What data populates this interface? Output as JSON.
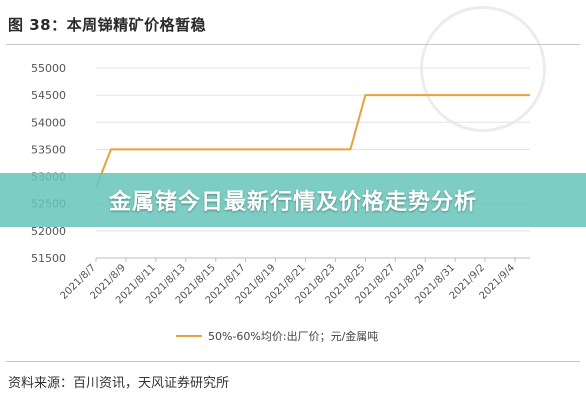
{
  "header": {
    "figure_title": "图 38：本周锑精矿价格暂稳"
  },
  "banner": {
    "text": "金属锗今日最新行情及价格走势分析"
  },
  "footer": {
    "source": "资料来源：百川资讯，天风证券研究所"
  },
  "chart_data": {
    "type": "line",
    "title": "图 38：本周锑精矿价格暂稳",
    "xlabel": "",
    "ylabel": "",
    "ylim": [
      51500,
      55000
    ],
    "yticks": [
      51500,
      52000,
      52500,
      53000,
      53500,
      54000,
      54500,
      55000
    ],
    "xtick_labels": [
      "2021/8/7",
      "2021/8/9",
      "2021/8/11",
      "2021/8/13",
      "2021/8/15",
      "2021/8/17",
      "2021/8/19",
      "2021/8/21",
      "2021/8/23",
      "2021/8/25",
      "2021/8/27",
      "2021/8/29",
      "2021/8/31",
      "2021/9/2",
      "2021/9/4"
    ],
    "x_range": [
      "2021/8/7",
      "2021/9/5"
    ],
    "grid": true,
    "legend_position": "bottom",
    "series": [
      {
        "name": "50%-60%均价:出厂价；元/金属吨",
        "color": "#e6a23c",
        "points": [
          {
            "x": "2021/8/7",
            "y": 52800
          },
          {
            "x": "2021/8/8",
            "y": 53500
          },
          {
            "x": "2021/8/24",
            "y": 53500
          },
          {
            "x": "2021/8/25",
            "y": 54500
          },
          {
            "x": "2021/9/5",
            "y": 54500
          }
        ]
      }
    ]
  }
}
